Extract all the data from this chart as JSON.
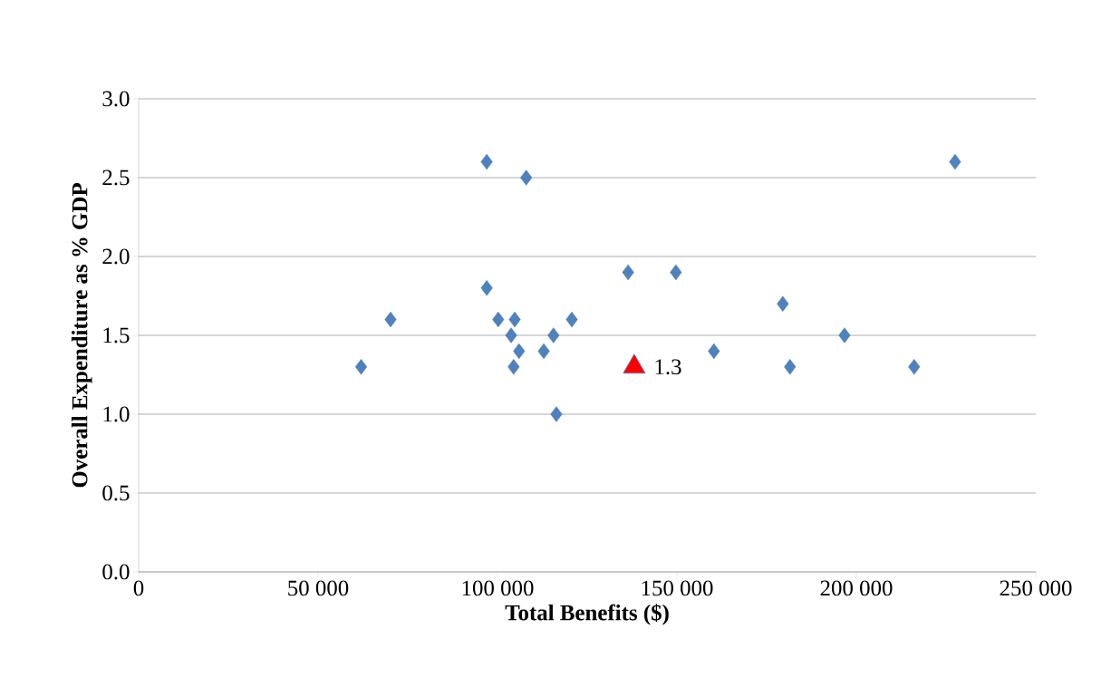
{
  "chart_data": {
    "type": "scatter",
    "xlabel": "Total Benefits ($)",
    "ylabel": "Overall Expenditure as % GDP",
    "series": [
      {
        "color": "#4f81bd",
        "marker": "diamond",
        "x": [
          62000,
          70200,
          97000,
          108000,
          97000,
          100200,
          104800,
          103800,
          106000,
          104500,
          112900,
          115600,
          116400,
          120700,
          136400,
          149700,
          160300,
          179500,
          181500,
          196700,
          216100,
          227500
        ],
        "values": [
          1.3,
          1.6,
          2.6,
          2.5,
          1.8,
          1.6,
          1.6,
          1.5,
          1.4,
          1.3,
          1.4,
          1.5,
          1.0,
          1.6,
          1.9,
          1.9,
          1.4,
          1.7,
          1.3,
          1.5,
          1.3,
          2.6
        ]
      },
      {
        "color": "#ff0000",
        "marker": "triangle",
        "x": [
          138100
        ],
        "values": [
          1.3
        ],
        "value_labels": [
          "1.3"
        ]
      }
    ],
    "xlim": [
      0,
      250000
    ],
    "ylim": [
      0,
      3
    ],
    "xticks": [
      0,
      {
        "value": 50000,
        "label": "50 000"
      },
      {
        "value": 100000,
        "label": "100 000"
      },
      {
        "value": 150000,
        "label": "150 000"
      },
      {
        "value": 200000,
        "label": "200 000"
      },
      {
        "value": 250000,
        "label": "250 000"
      }
    ],
    "yticks": [
      {
        "value": 0,
        "label": "0.0"
      },
      {
        "value": 0.5,
        "label": "0.5"
      },
      {
        "value": 1,
        "label": "1.0"
      },
      {
        "value": 1.5,
        "label": "1.5"
      },
      {
        "value": 2,
        "label": "2.0"
      },
      {
        "value": 2.5,
        "label": "2.5"
      },
      {
        "value": 3,
        "label": "3.0"
      }
    ],
    "grid": "y"
  }
}
